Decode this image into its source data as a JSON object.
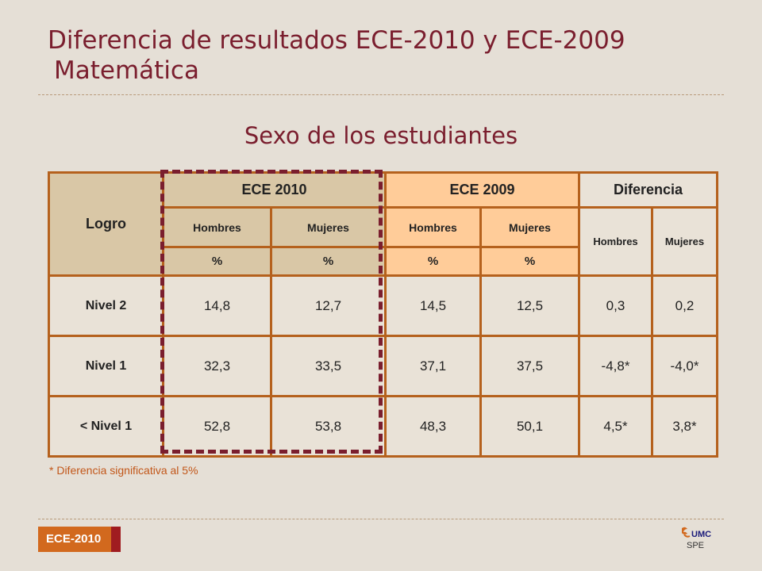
{
  "title": {
    "line1": "Diferencia de resultados ECE-2010 y ECE-2009",
    "line2": "Matemática"
  },
  "subtitle": "Sexo de los estudiantes",
  "table": {
    "logro_header": "Logro",
    "group_headers": [
      "ECE 2010",
      "ECE 2009",
      "Diferencia"
    ],
    "sub_headers": [
      "Hombres",
      "Mujeres",
      "Hombres",
      "Mujeres",
      "Hombres",
      "Mujeres"
    ],
    "units": [
      "%",
      "%",
      "%",
      "%"
    ],
    "rows": [
      {
        "label": "Nivel 2",
        "values": [
          "14,8",
          "12,7",
          "14,5",
          "12,5",
          "0,3",
          "0,2"
        ]
      },
      {
        "label": "Nivel 1",
        "values": [
          "32,3",
          "33,5",
          "37,1",
          "37,5",
          "-4,8*",
          "-4,0*"
        ]
      },
      {
        "label": "< Nivel 1",
        "values": [
          "52,8",
          "53,8",
          "48,3",
          "50,1",
          "4,5*",
          "3,8*"
        ]
      }
    ]
  },
  "footnote": "* Diferencia significativa al 5%",
  "footer": {
    "tag": "ECE-2010",
    "logo_text": "UMC",
    "logo_sub": "SPE"
  },
  "colors": {
    "title": "#7a1e2e",
    "border": "#b5611d",
    "ece2010": "#d9c7a6",
    "ece2009": "#ffcc99",
    "highlight": "#7a1e2e"
  }
}
